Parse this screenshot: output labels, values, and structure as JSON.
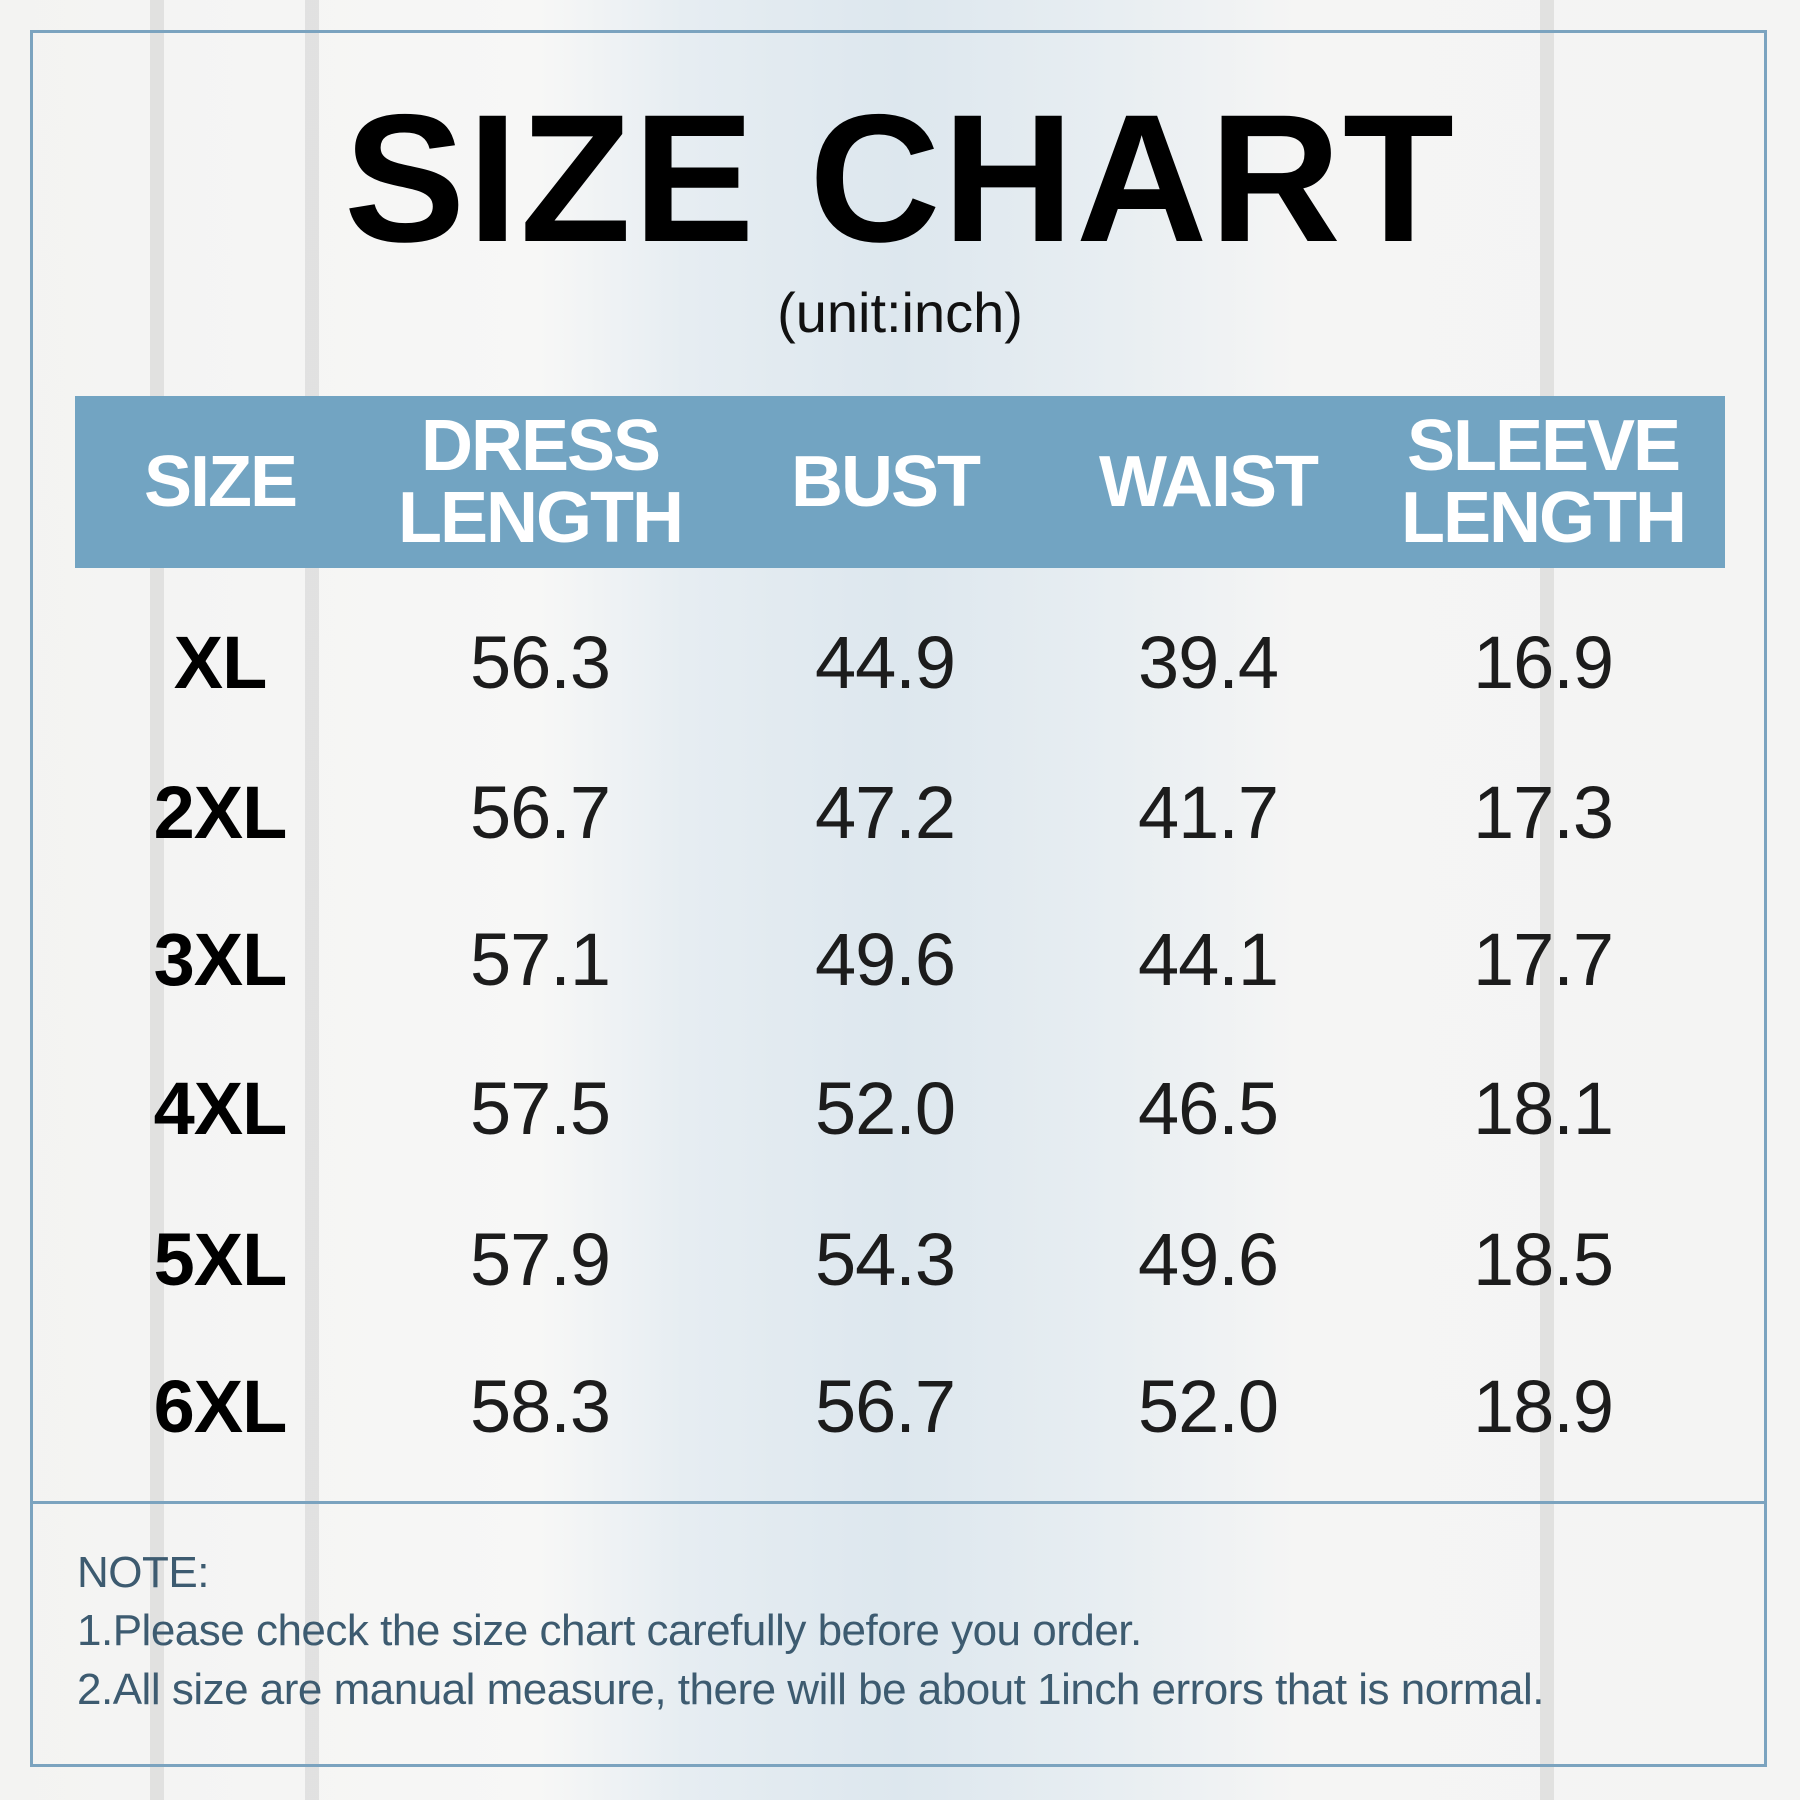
{
  "title": "SIZE CHART",
  "unit": "(unit:inch)",
  "colors": {
    "header_bg": "#72a4c2",
    "frame": "#7ba3bf",
    "note_text": "#3d5b70"
  },
  "columns": [
    "SIZE",
    "DRESS\nLENGTH",
    "BUST",
    "WAIST",
    "SLEEVE\nLENGTH"
  ],
  "rows": [
    {
      "size": "XL",
      "dress_length": "56.3",
      "bust": "44.9",
      "waist": "39.4",
      "sleeve_length": "16.9"
    },
    {
      "size": "2XL",
      "dress_length": "56.7",
      "bust": "47.2",
      "waist": "41.7",
      "sleeve_length": "17.3"
    },
    {
      "size": "3XL",
      "dress_length": "57.1",
      "bust": "49.6",
      "waist": "44.1",
      "sleeve_length": "17.7"
    },
    {
      "size": "4XL",
      "dress_length": "57.5",
      "bust": "52.0",
      "waist": "46.5",
      "sleeve_length": "18.1"
    },
    {
      "size": "5XL",
      "dress_length": "57.9",
      "bust": "54.3",
      "waist": "49.6",
      "sleeve_length": "18.5"
    },
    {
      "size": "6XL",
      "dress_length": "58.3",
      "bust": "56.7",
      "waist": "52.0",
      "sleeve_length": "18.9"
    }
  ],
  "notes": {
    "heading": "NOTE:",
    "lines": [
      "1.Please check the size chart carefully before you order.",
      "2.All size are manual measure, there will be about 1inch errors that is normal."
    ]
  }
}
